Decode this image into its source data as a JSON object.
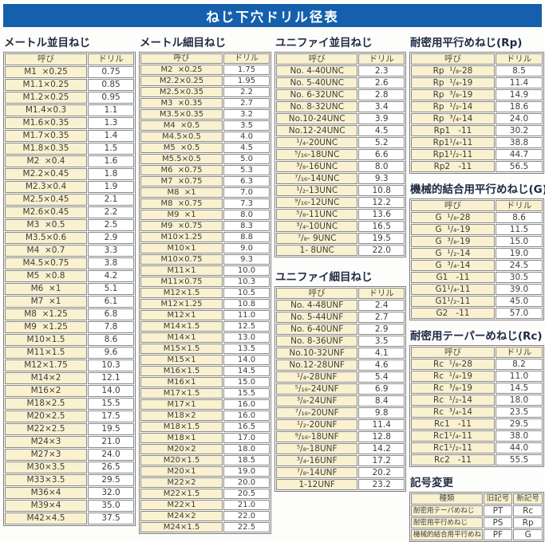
{
  "title": "ねじ下穴ドリル径表",
  "table_headers": {
    "name": "呼び",
    "drill": "ドリル"
  },
  "colors": {
    "title_bar": "#1560ac",
    "header_fill": "#f9f1cf",
    "border": "#8a8a8a",
    "heading_text": "#1f2a44"
  },
  "sections": {
    "metric_coarse": {
      "title": "メートル並目ねじ",
      "rows": [
        [
          "M1  ×0.25",
          "0.75"
        ],
        [
          "M1.1×0.25",
          "0.85"
        ],
        [
          "M1.2×0.25",
          "0.95"
        ],
        [
          "M1.4×0.3",
          "1.1"
        ],
        [
          "M1.6×0.35",
          "1.3"
        ],
        [
          "M1.7×0.35",
          "1.4"
        ],
        [
          "M1.8×0.35",
          "1.5"
        ],
        [
          "M2  ×0.4",
          "1.6"
        ],
        [
          "M2.2×0.45",
          "1.8"
        ],
        [
          "M2.3×0.4",
          "1.9"
        ],
        [
          "M2.5×0.45",
          "2.1"
        ],
        [
          "M2.6×0.45",
          "2.2"
        ],
        [
          "M3  ×0.5",
          "2.5"
        ],
        [
          "M3.5×0.6",
          "2.9"
        ],
        [
          "M4  ×0.7",
          "3.3"
        ],
        [
          "M4.5×0.75",
          "3.8"
        ],
        [
          "M5  ×0.8",
          "4.2"
        ],
        [
          "M6  ×1",
          "5.1"
        ],
        [
          "M7  ×1",
          "6.1"
        ],
        [
          "M8  ×1.25",
          "6.8"
        ],
        [
          "M9  ×1.25",
          "7.8"
        ],
        [
          "M10×1.5",
          "8.6"
        ],
        [
          "M11×1.5",
          "9.6"
        ],
        [
          "M12×1.75",
          "10.3"
        ],
        [
          "M14×2",
          "12.1"
        ],
        [
          "M16×2",
          "14.0"
        ],
        [
          "M18×2.5",
          "15.5"
        ],
        [
          "M20×2.5",
          "17.5"
        ],
        [
          "M22×2.5",
          "19.5"
        ],
        [
          "M24×3",
          "21.0"
        ],
        [
          "M27×3",
          "24.0"
        ],
        [
          "M30×3.5",
          "26.5"
        ],
        [
          "M33×3.5",
          "29.5"
        ],
        [
          "M36×4",
          "32.0"
        ],
        [
          "M39×4",
          "35.0"
        ],
        [
          "M42×4.5",
          "37.5"
        ]
      ]
    },
    "metric_fine": {
      "title": "メートル細目ねじ",
      "rows": [
        [
          "M2  ×0.25",
          "1.75"
        ],
        [
          "M2.2×0.25",
          "1.95"
        ],
        [
          "M2.5×0.35",
          "2.2"
        ],
        [
          "M3  ×0.35",
          "2.7"
        ],
        [
          "M3.5×0.35",
          "3.2"
        ],
        [
          "M4  ×0.5",
          "3.5"
        ],
        [
          "M4.5×0.5",
          "4.0"
        ],
        [
          "M5  ×0.5",
          "4.5"
        ],
        [
          "M5.5×0.5",
          "5.0"
        ],
        [
          "M6  ×0.75",
          "5.3"
        ],
        [
          "M7  ×0.75",
          "6.3"
        ],
        [
          "M8  ×1",
          "7.0"
        ],
        [
          "M8  ×0.75",
          "7.3"
        ],
        [
          "M9  ×1",
          "8.0"
        ],
        [
          "M9  ×0.75",
          "8.3"
        ],
        [
          "M10×1.25",
          "8.8"
        ],
        [
          "M10×1",
          "9.0"
        ],
        [
          "M10×0.75",
          "9.3"
        ],
        [
          "M11×1",
          "10.0"
        ],
        [
          "M11×0.75",
          "10.3"
        ],
        [
          "M12×1.5",
          "10.5"
        ],
        [
          "M12×1.25",
          "10.8"
        ],
        [
          "M12×1",
          "11.0"
        ],
        [
          "M14×1.5",
          "12.5"
        ],
        [
          "M14×1",
          "13.0"
        ],
        [
          "M15×1.5",
          "13.5"
        ],
        [
          "M15×1",
          "14.0"
        ],
        [
          "M16×1.5",
          "14.5"
        ],
        [
          "M16×1",
          "15.0"
        ],
        [
          "M17×1.5",
          "15.5"
        ],
        [
          "M17×1",
          "16.0"
        ],
        [
          "M18×2",
          "16.0"
        ],
        [
          "M18×1.5",
          "16.5"
        ],
        [
          "M18×1",
          "17.0"
        ],
        [
          "M20×2",
          "18.0"
        ],
        [
          "M20×1.5",
          "18.5"
        ],
        [
          "M20×1",
          "19.0"
        ],
        [
          "M22×2",
          "20.0"
        ],
        [
          "M22×1.5",
          "20.5"
        ],
        [
          "M22×1",
          "21.0"
        ],
        [
          "M24×2",
          "22.0"
        ],
        [
          "M24×1.5",
          "22.5"
        ]
      ]
    },
    "unified_coarse": {
      "title": "ユニファイ並目ねじ",
      "rows": [
        [
          "No. 4-40UNC",
          "2.3"
        ],
        [
          "No. 5-40UNC",
          "2.6"
        ],
        [
          "No. 6-32UNC",
          "2.8"
        ],
        [
          "No. 8-32UNC",
          "3.4"
        ],
        [
          "No.10-24UNC",
          "3.9"
        ],
        [
          "No.12-24UNC",
          "4.5"
        ],
        [
          "¹/₄-20UNC",
          "5.2"
        ],
        [
          "⁵/₁₆-18UNC",
          "6.6"
        ],
        [
          "³/₈-16UNC",
          "8.0"
        ],
        [
          "⁷/₁₆-14UNC",
          "9.3"
        ],
        [
          "¹/₂-13UNC",
          "10.8"
        ],
        [
          "⁹/₁₆-12UNC",
          "12.2"
        ],
        [
          "⁵/₈-11UNC",
          "13.6"
        ],
        [
          "³/₄-10UNC",
          "16.5"
        ],
        [
          "⁷/₈- 9UNC",
          "19.5"
        ],
        [
          "1- 8UNC",
          "22.0"
        ]
      ]
    },
    "unified_fine": {
      "title": "ユニファイ細目ねじ",
      "rows": [
        [
          "No. 4-48UNF",
          "2.4"
        ],
        [
          "No. 5-44UNF",
          "2.7"
        ],
        [
          "No. 6-40UNF",
          "2.9"
        ],
        [
          "No. 8-36UNF",
          "3.5"
        ],
        [
          "No.10-32UNF",
          "4.1"
        ],
        [
          "No.12-28UNF",
          "4.6"
        ],
        [
          "¹/₄-28UNF",
          "5.4"
        ],
        [
          "⁵/₁₆-24UNF",
          "6.9"
        ],
        [
          "³/₈-24UNF",
          "8.4"
        ],
        [
          "⁷/₁₆-20UNF",
          "9.8"
        ],
        [
          "¹/₂-20UNF",
          "11.4"
        ],
        [
          "⁹/₁₆-18UNF",
          "12.8"
        ],
        [
          "⁵/₈-18UNF",
          "14.2"
        ],
        [
          "³/₄-16UNF",
          "17.2"
        ],
        [
          "⁷/₈-14UNF",
          "20.2"
        ],
        [
          "1-12UNF",
          "23.2"
        ]
      ]
    },
    "rp": {
      "title": "耐密用平行めねじ(Rp)",
      "rows": [
        [
          "Rp  ¹/₈-28",
          "8.5"
        ],
        [
          "Rp  ¹/₄-19",
          "11.4"
        ],
        [
          "Rp  ³/₈-19",
          "14.9"
        ],
        [
          "Rp  ¹/₂-14",
          "18.6"
        ],
        [
          "Rp  ³/₄-14",
          "24.0"
        ],
        [
          "Rp1   -11",
          "30.2"
        ],
        [
          "Rp1¹/₄-11",
          "38.8"
        ],
        [
          "Rp1¹/₂-11",
          "44.7"
        ],
        [
          "Rp2   -11",
          "56.5"
        ]
      ]
    },
    "g": {
      "title": "機械的結合用平行めねじ(G)",
      "rows": [
        [
          "G  ¹/₈-28",
          "8.6"
        ],
        [
          "G  ¹/₄-19",
          "11.5"
        ],
        [
          "G  ³/₈-19",
          "15.0"
        ],
        [
          "G  ¹/₂-14",
          "19.0"
        ],
        [
          "G  ³/₄-14",
          "24.5"
        ],
        [
          "G1   -11",
          "30.5"
        ],
        [
          "G1¹/₄-11",
          "39.0"
        ],
        [
          "G1¹/₂-11",
          "45.0"
        ],
        [
          "G2   -11",
          "57.0"
        ]
      ]
    },
    "rc": {
      "title": "耐密用テーパーめねじ(Rc)",
      "rows": [
        [
          "Rc  ¹/₈-28",
          "8.2"
        ],
        [
          "Rc  ¹/₄-19",
          "11.0"
        ],
        [
          "Rc  ³/₈-19",
          "14.5"
        ],
        [
          "Rc  ¹/₂-14",
          "18.0"
        ],
        [
          "Rc  ³/₄-14",
          "23.5"
        ],
        [
          "Rc1   -11",
          "29.5"
        ],
        [
          "Rc1¹/₄-11",
          "38.0"
        ],
        [
          "Rc1¹/₂-11",
          "44.0"
        ],
        [
          "Rc2   -11",
          "55.5"
        ]
      ]
    },
    "symbol_change": {
      "title": "記号変更",
      "headers": [
        "種類",
        "旧記号",
        "新記号"
      ],
      "rows": [
        [
          "耐密用テーパめねじ",
          "PT",
          "Rc"
        ],
        [
          "耐密用平行めねじ",
          "PS",
          "Rp"
        ],
        [
          "機械的結合用平行めねじ",
          "PF",
          "G"
        ]
      ]
    }
  }
}
